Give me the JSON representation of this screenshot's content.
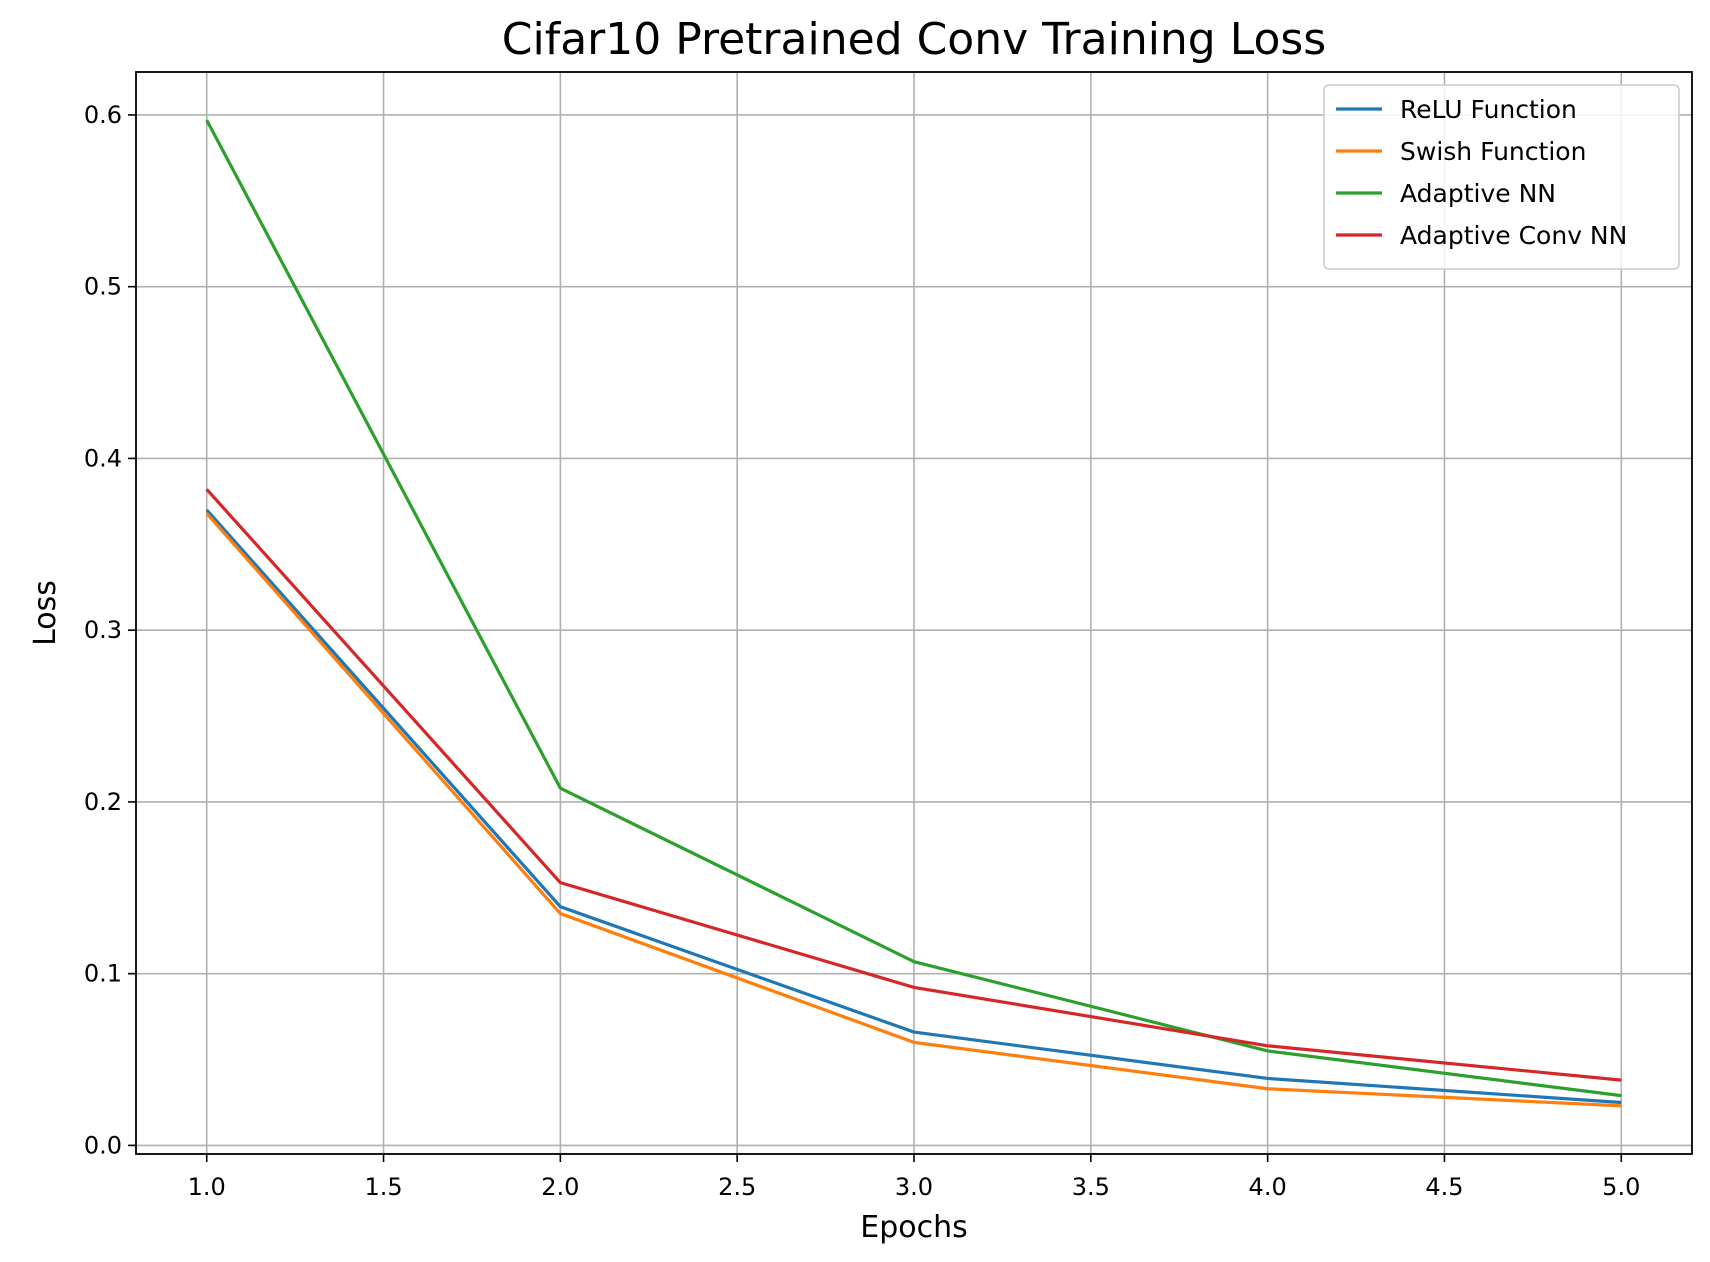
{
  "chart_data": {
    "type": "line",
    "title": "Cifar10 Pretrained Conv Training Loss",
    "xlabel": "Epochs",
    "ylabel": "Loss",
    "x": [
      1,
      2,
      3,
      4,
      5
    ],
    "xlim": [
      0.8,
      5.2
    ],
    "ylim": [
      -0.005,
      0.625
    ],
    "xticks": [
      1.0,
      1.5,
      2.0,
      2.5,
      3.0,
      3.5,
      4.0,
      4.5,
      5.0
    ],
    "xtick_labels": [
      "1.0",
      "1.5",
      "2.0",
      "2.5",
      "3.0",
      "3.5",
      "4.0",
      "4.5",
      "5.0"
    ],
    "yticks": [
      0.0,
      0.1,
      0.2,
      0.3,
      0.4,
      0.5,
      0.6
    ],
    "ytick_labels": [
      "0.0",
      "0.1",
      "0.2",
      "0.3",
      "0.4",
      "0.5",
      "0.6"
    ],
    "grid": true,
    "legend_position": "top-right",
    "series": [
      {
        "name": "ReLU Function",
        "color": "#1f77b4",
        "values": [
          0.37,
          0.139,
          0.066,
          0.039,
          0.025
        ]
      },
      {
        "name": "Swish Function",
        "color": "#ff7f0e",
        "values": [
          0.368,
          0.135,
          0.06,
          0.033,
          0.023
        ]
      },
      {
        "name": "Adaptive NN",
        "color": "#2ca02c",
        "values": [
          0.597,
          0.208,
          0.107,
          0.055,
          0.029
        ]
      },
      {
        "name": "Adaptive Conv NN",
        "color": "#d62728",
        "values": [
          0.382,
          0.153,
          0.092,
          0.058,
          0.038
        ]
      }
    ]
  }
}
